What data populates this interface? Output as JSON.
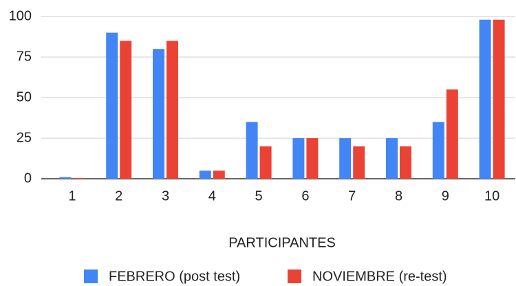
{
  "chart_data": {
    "type": "bar",
    "categories": [
      "1",
      "2",
      "3",
      "4",
      "5",
      "6",
      "7",
      "8",
      "9",
      "10"
    ],
    "series": [
      {
        "name": "FEBRERO (post test)",
        "color": "#4285f4",
        "values": [
          1,
          90,
          80,
          5,
          35,
          25,
          25,
          25,
          35,
          98
        ]
      },
      {
        "name": "NOVIEMBRE (re-test)",
        "color": "#ea4335",
        "values": [
          0.5,
          85,
          85,
          5,
          20,
          25,
          20,
          20,
          55,
          98
        ]
      }
    ],
    "x_label": "PARTICIPANTES",
    "ylim": [
      0,
      100
    ],
    "yticks": [
      0,
      25,
      50,
      75,
      100
    ],
    "grid": true,
    "legend": "bottom"
  }
}
